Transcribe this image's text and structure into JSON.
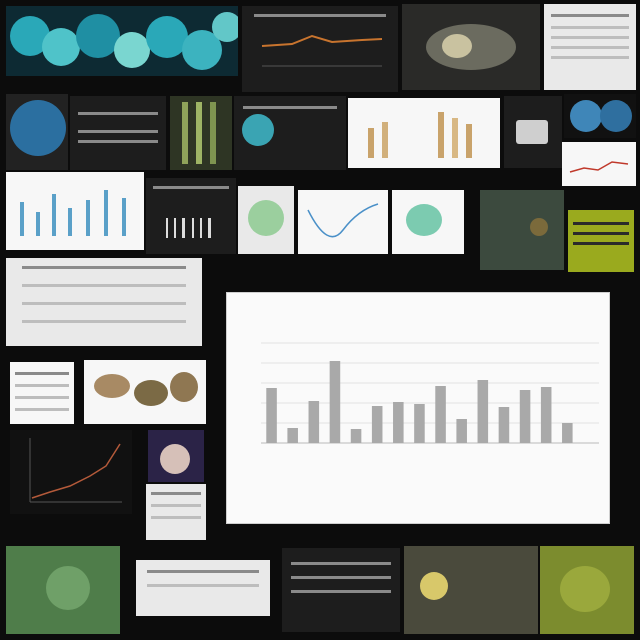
{
  "chart_data": {
    "type": "bar",
    "title_line1": "",
    "title_line2": "",
    "categories": [
      "",
      "",
      "",
      "",
      "",
      "",
      "",
      "",
      "",
      "",
      "",
      "",
      "",
      "",
      "",
      ""
    ],
    "values": [
      55,
      15,
      42,
      82,
      14,
      37,
      41,
      39,
      57,
      24,
      63,
      36,
      53,
      56,
      20,
      0
    ],
    "ylim": [
      0,
      100
    ],
    "xlabel": "",
    "ylabel": "",
    "bar_color": "#a9a9a9",
    "grid": true
  },
  "colors": {
    "background": "#0c0c0c",
    "tile_dark": "#1d1d1d",
    "tile_light": "#e9e9e9",
    "cyan_accent": "#2aa8b8",
    "moss_green": "#6f8f3a",
    "orange_line": "#c8742e"
  }
}
